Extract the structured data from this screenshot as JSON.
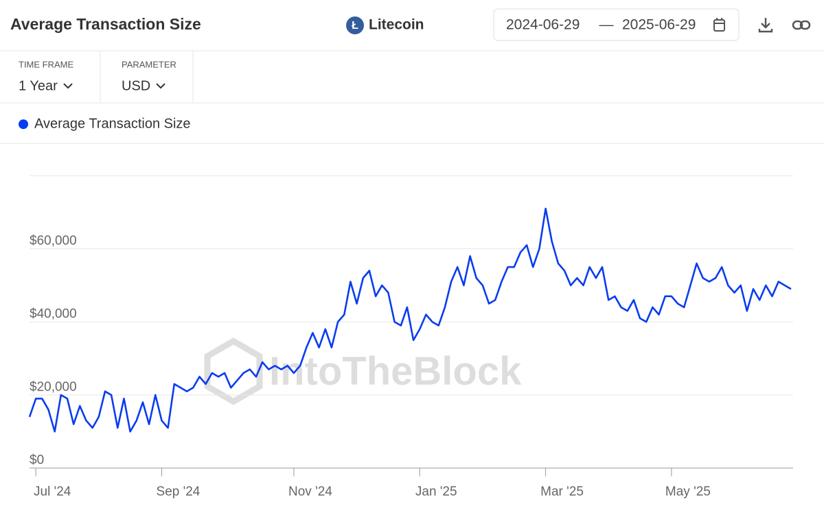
{
  "header": {
    "title": "Average Transaction Size",
    "asset": "Litecoin",
    "date_from": "2024-06-29",
    "date_separator": "—",
    "date_to": "2025-06-29"
  },
  "controls": [
    {
      "label": "TIME FRAME",
      "value": "1 Year"
    },
    {
      "label": "PARAMETER",
      "value": "USD"
    }
  ],
  "watermark": "IntoTheBlock",
  "chart_data": {
    "type": "line",
    "categories": [
      null,
      "Jul '24",
      null,
      null,
      null,
      null,
      null,
      null,
      null,
      null,
      null,
      null,
      null,
      null,
      null,
      null,
      null,
      null,
      null,
      null,
      null,
      "Sep '24",
      null,
      null,
      null,
      null,
      null,
      null,
      null,
      null,
      null,
      null,
      null,
      null,
      null,
      null,
      null,
      null,
      null,
      null,
      null,
      null,
      "Nov '24",
      null,
      null,
      null,
      null,
      null,
      null,
      null,
      null,
      null,
      null,
      null,
      null,
      null,
      null,
      null,
      null,
      null,
      null,
      null,
      "Jan '25",
      null,
      null,
      null,
      null,
      null,
      null,
      null,
      null,
      null,
      null,
      null,
      null,
      null,
      null,
      null,
      null,
      null,
      null,
      null,
      "Mar '25",
      null,
      null,
      null,
      null,
      null,
      null,
      null,
      null,
      null,
      null,
      null,
      null,
      null,
      null,
      null,
      null,
      null,
      null,
      null,
      "May '25",
      null,
      null,
      null,
      null,
      null,
      null,
      null,
      null,
      null,
      null,
      null,
      null,
      null,
      null,
      null,
      null,
      null,
      null,
      null
    ],
    "series": [
      {
        "name": "Average Transaction Size",
        "color": "#0a3cf0",
        "values": [
          14000,
          19000,
          19000,
          16000,
          10000,
          20000,
          19000,
          12000,
          17000,
          13000,
          11000,
          14000,
          21000,
          20000,
          11000,
          19000,
          10000,
          13000,
          18000,
          12000,
          20000,
          13000,
          11000,
          23000,
          22000,
          21000,
          22000,
          25000,
          23000,
          26000,
          25000,
          26000,
          22000,
          24000,
          26000,
          27000,
          25000,
          29000,
          27000,
          28000,
          27000,
          28000,
          26000,
          28000,
          33000,
          37000,
          33000,
          38000,
          33000,
          40000,
          42000,
          51000,
          45000,
          52000,
          54000,
          47000,
          50000,
          48000,
          40000,
          39000,
          44000,
          35000,
          38000,
          42000,
          40000,
          39000,
          44000,
          51000,
          55000,
          50000,
          58000,
          52000,
          50000,
          45000,
          46000,
          51000,
          55000,
          55000,
          59000,
          61000,
          55000,
          60000,
          71000,
          62000,
          56000,
          54000,
          50000,
          52000,
          50000,
          55000,
          52000,
          55000,
          46000,
          47000,
          44000,
          43000,
          46000,
          41000,
          40000,
          44000,
          42000,
          47000,
          47000,
          45000,
          44000,
          50000,
          56000,
          52000,
          51000,
          52000,
          55000,
          50000,
          48000,
          50000,
          43000,
          49000,
          46000,
          50000,
          47000,
          51000,
          50000,
          49000
        ]
      }
    ],
    "ylim": [
      0,
      80000
    ],
    "yticks": [
      {
        "value": 0,
        "label": "$0"
      },
      {
        "value": 20000,
        "label": "$20,000"
      },
      {
        "value": 40000,
        "label": "$40,000"
      },
      {
        "value": 60000,
        "label": "$60,000"
      }
    ],
    "grid": true
  }
}
